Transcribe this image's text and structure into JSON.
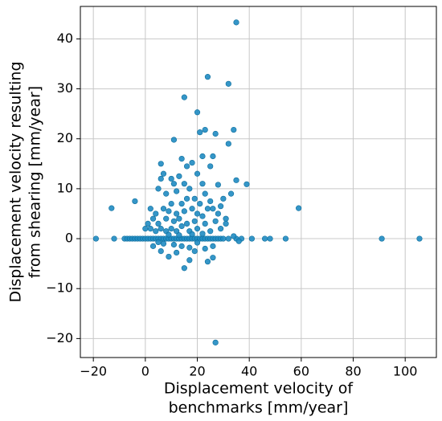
{
  "chart_data": {
    "type": "scatter",
    "xlabel": [
      "Displacement velocity of",
      "benchmarks [mm/year]"
    ],
    "ylabel": [
      "Displacement velocity resulting",
      "from shearing [mm/year]"
    ],
    "color": "#1f8bc2",
    "grid": true,
    "xlim": [
      -25,
      112
    ],
    "ylim": [
      -23.8,
      46.5
    ],
    "xticks": [
      {
        "value": -20,
        "label": "−20"
      },
      0,
      20,
      40,
      60,
      80,
      100
    ],
    "yticks": [
      {
        "value": -20,
        "label": "−20"
      },
      {
        "value": -10,
        "label": "−10"
      },
      0,
      10,
      20,
      30,
      40
    ],
    "x": [
      -19,
      -12,
      -8,
      -7,
      -6,
      -5,
      -4,
      -3,
      -2,
      -1,
      0,
      1,
      2,
      3,
      4,
      5,
      6,
      7,
      8,
      9,
      10,
      11,
      12,
      13,
      14,
      15,
      16,
      17,
      18,
      19,
      20,
      21,
      22,
      23,
      24,
      25,
      26,
      27,
      28,
      29,
      30,
      32,
      35,
      37,
      41,
      46,
      48,
      54,
      91,
      105.5,
      35,
      24,
      32,
      15,
      20,
      27,
      23,
      34,
      32,
      11,
      21,
      26,
      22,
      14,
      18,
      25,
      6,
      16,
      7,
      20,
      13,
      35,
      39,
      11,
      22,
      28,
      -13,
      -4,
      59,
      27,
      15,
      17,
      24,
      26,
      9,
      3,
      6,
      5,
      8,
      12,
      17,
      19,
      23,
      25,
      30,
      33,
      10,
      14,
      16,
      21,
      26,
      28,
      2,
      4,
      7,
      9,
      12,
      15,
      18,
      20,
      22,
      24,
      1,
      3,
      5,
      8,
      11,
      13,
      16,
      19,
      23,
      27,
      31,
      0,
      2,
      4,
      6,
      8,
      10,
      12,
      14,
      17,
      20,
      22,
      25,
      29,
      34,
      9,
      13,
      18,
      7,
      11,
      14,
      17,
      20,
      23,
      26,
      5,
      12,
      19,
      10,
      15,
      6,
      29,
      31,
      36
    ],
    "y": [
      0,
      0,
      0,
      0,
      0,
      0,
      0,
      0,
      0,
      0,
      0,
      0,
      0,
      0,
      0,
      0,
      0,
      0,
      0,
      0,
      0,
      0,
      0,
      0,
      0,
      0,
      0,
      0,
      0,
      0,
      0,
      0,
      0,
      0,
      0,
      0,
      0,
      0,
      0,
      0,
      0,
      0,
      0,
      0,
      0,
      0,
      0,
      0,
      0,
      0,
      43.3,
      32.4,
      31,
      28.3,
      25.3,
      21,
      21.8,
      21.8,
      19,
      19.8,
      21.3,
      16.5,
      16.5,
      16,
      15.2,
      14.5,
      15,
      14.5,
      13,
      13,
      12.5,
      11.7,
      10.9,
      11,
      11,
      10.8,
      6.1,
      7.5,
      6.1,
      -20.8,
      -5.9,
      -4.3,
      -4.6,
      -3.8,
      -3.6,
      -1.5,
      -2.5,
      10,
      9,
      9.5,
      10,
      8,
      9,
      7.5,
      8,
      9,
      7,
      7,
      8,
      7,
      6,
      5,
      6,
      5,
      6,
      5.5,
      5,
      5.5,
      6,
      5,
      4.5,
      6,
      3,
      4,
      3,
      4,
      3.5,
      4,
      3,
      3.5,
      3,
      3.5,
      4,
      2,
      2,
      1.5,
      2,
      1.5,
      2,
      1.5,
      2.5,
      1.5,
      2,
      1,
      1.5,
      2,
      0.5,
      0.8,
      0.7,
      0.9,
      -1,
      -1.2,
      -1.5,
      -1.8,
      -0.8,
      -2,
      -1.5,
      -0.7,
      -2.8,
      -2.5,
      12,
      11,
      12,
      6.5,
      3,
      -0.5
    ]
  }
}
